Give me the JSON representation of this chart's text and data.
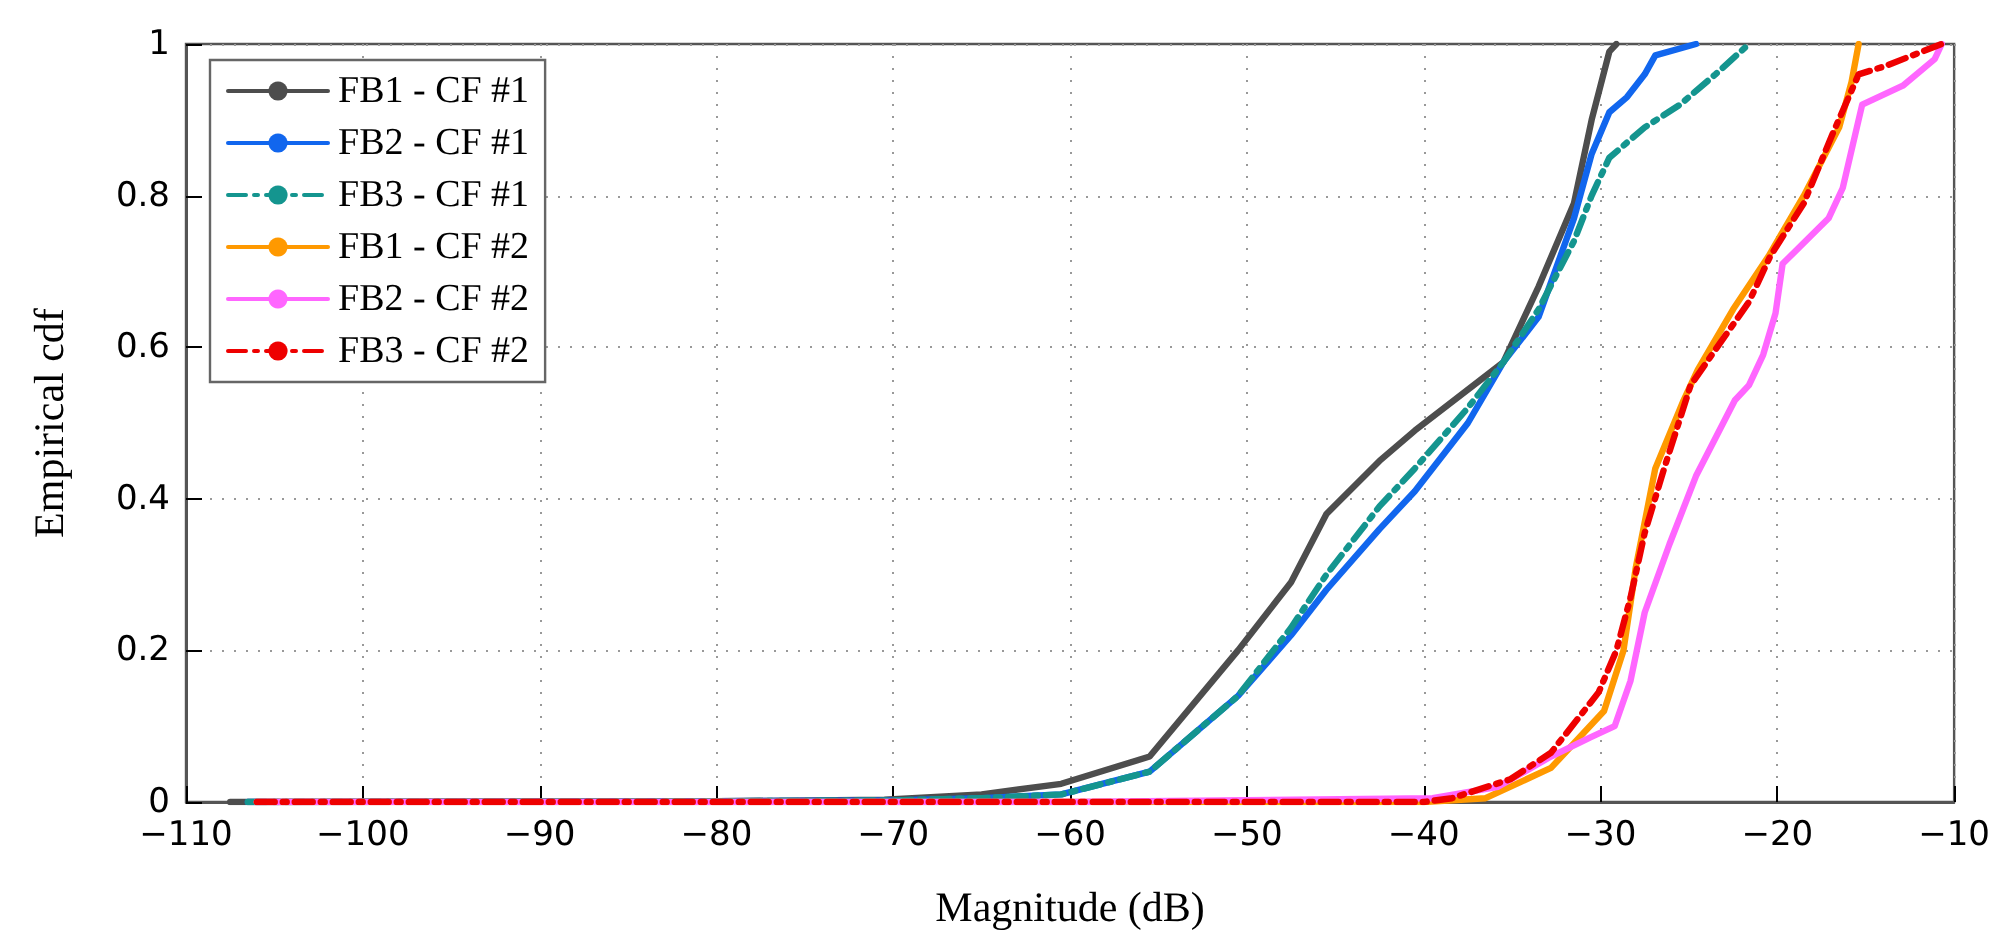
{
  "chart_data": {
    "type": "line",
    "xlabel": "Magnitude (dB)",
    "ylabel": "Empirical cdf",
    "xlim": [
      -110,
      -10
    ],
    "xticks": [
      -110,
      -100,
      -90,
      -80,
      -70,
      -60,
      -50,
      -40,
      -30,
      -20,
      -10
    ],
    "ylim": [
      0,
      1
    ],
    "yticks": [
      0,
      0.2,
      0.4,
      0.6,
      0.8,
      1
    ],
    "grid": true,
    "legend": "top left",
    "marker": "none",
    "series": [
      {
        "name": "FB1 - CF #1",
        "color": "#4d4d4d",
        "line_style": "solid",
        "x": [
          -107.5,
          -80,
          -70.5,
          -65,
          -60.5,
          -55.5,
          -50.5,
          -47.5,
          -45.5,
          -42.5,
          -40.5,
          -35.5,
          -33.5,
          -31.5,
          -30.5,
          -29.5,
          -29.1
        ],
        "values": [
          0,
          0.001,
          0.003,
          0.01,
          0.024,
          0.06,
          0.2,
          0.29,
          0.38,
          0.45,
          0.49,
          0.58,
          0.68,
          0.79,
          0.9,
          0.99,
          1
        ]
      },
      {
        "name": "FB2 - CF #1",
        "color": "#1166ee",
        "line_style": "solid",
        "x": [
          -106.5,
          -80,
          -70,
          -65,
          -60.5,
          -55.5,
          -50.5,
          -47.5,
          -45.5,
          -42.5,
          -40.5,
          -37.5,
          -35.5,
          -33.5,
          -31.5,
          -30.5,
          -29.5,
          -28.5,
          -27.5,
          -26.9,
          -24.6
        ],
        "values": [
          0,
          0.001,
          0.002,
          0.005,
          0.01,
          0.04,
          0.14,
          0.22,
          0.28,
          0.36,
          0.41,
          0.5,
          0.58,
          0.64,
          0.77,
          0.855,
          0.91,
          0.93,
          0.96,
          0.985,
          1
        ]
      },
      {
        "name": "FB3 - CF #1",
        "color": "#14958f",
        "line_style": "dashed",
        "x": [
          -106.5,
          -80,
          -70,
          -65,
          -60.5,
          -55.5,
          -50.5,
          -47.5,
          -45.5,
          -42.5,
          -40.5,
          -37.5,
          -35.5,
          -33.5,
          -31.5,
          -30.5,
          -29.5,
          -27.5,
          -25.5,
          -23.5,
          -21.6
        ],
        "values": [
          0,
          0.001,
          0.002,
          0.005,
          0.01,
          0.04,
          0.14,
          0.23,
          0.3,
          0.39,
          0.44,
          0.52,
          0.58,
          0.65,
          0.74,
          0.8,
          0.85,
          0.89,
          0.92,
          0.96,
          1
        ]
      },
      {
        "name": "FB1 - CF #2",
        "color": "#ff9900",
        "line_style": "solid",
        "x": [
          -106,
          -60,
          -40,
          -36.5,
          -32.8,
          -29.8,
          -28.7,
          -28,
          -26.9,
          -25.3,
          -24.5,
          -22.5,
          -20.5,
          -18.5,
          -16.5,
          -15.8,
          -15.4
        ],
        "values": [
          0,
          0,
          0,
          0.005,
          0.045,
          0.12,
          0.2,
          0.31,
          0.44,
          0.53,
          0.57,
          0.65,
          0.72,
          0.8,
          0.89,
          0.95,
          1
        ]
      },
      {
        "name": "FB2 - CF #2",
        "color": "#ff66ff",
        "line_style": "solid",
        "x": [
          -106,
          -60,
          -39.5,
          -35.8,
          -32.8,
          -30.6,
          -29.2,
          -28.3,
          -27.5,
          -26.1,
          -24.6,
          -22.4,
          -21.6,
          -20.8,
          -20.1,
          -19.7,
          -17.1,
          -16.3,
          -15.2,
          -12.9,
          -11.1,
          -10.7
        ],
        "values": [
          0,
          0,
          0.005,
          0.02,
          0.06,
          0.085,
          0.1,
          0.16,
          0.25,
          0.34,
          0.43,
          0.53,
          0.55,
          0.59,
          0.645,
          0.71,
          0.77,
          0.81,
          0.92,
          0.945,
          0.98,
          1
        ]
      },
      {
        "name": "FB3 - CF #2",
        "color": "#ee0000",
        "line_style": "dashed",
        "x": [
          -106,
          -60,
          -40,
          -38.4,
          -35.1,
          -32.8,
          -30.6,
          -30.1,
          -29.1,
          -28.3,
          -27.5,
          -26.4,
          -24.9,
          -21.6,
          -20.4,
          -18.5,
          -16.9,
          -15.4,
          -14,
          -10.7
        ],
        "values": [
          0,
          0,
          0,
          0.005,
          0.03,
          0.065,
          0.13,
          0.145,
          0.2,
          0.27,
          0.355,
          0.44,
          0.55,
          0.66,
          0.72,
          0.79,
          0.88,
          0.96,
          0.97,
          1
        ]
      }
    ]
  }
}
